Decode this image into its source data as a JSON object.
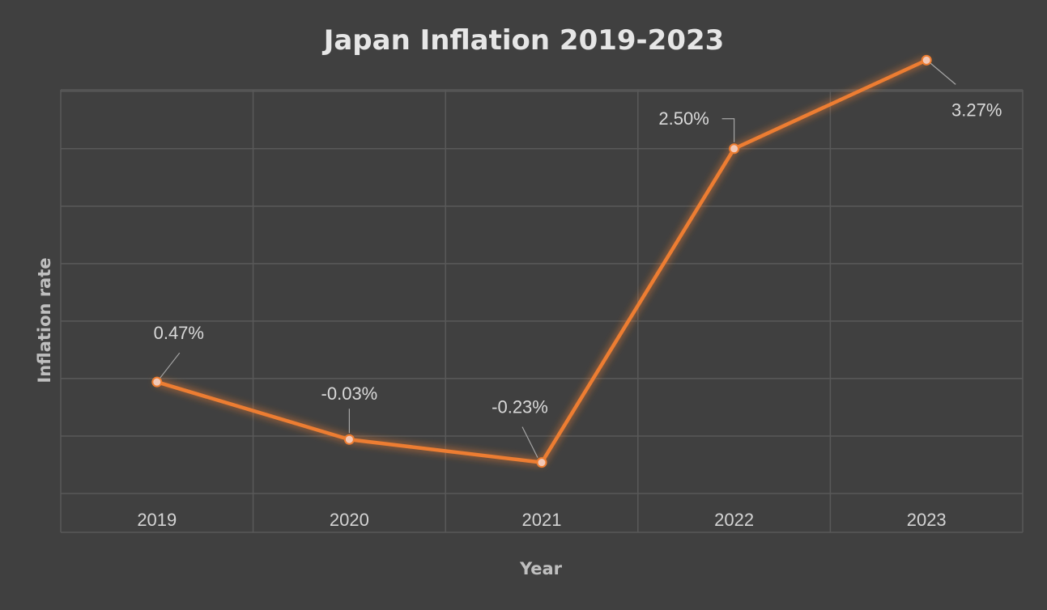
{
  "chart_data": {
    "type": "line",
    "title": "Japan Inflation 2019-2023",
    "xlabel": "Year",
    "ylabel": "Inflation rate",
    "categories": [
      "2019",
      "2020",
      "2021",
      "2022",
      "2023"
    ],
    "series": [
      {
        "name": "Inflation rate",
        "values": [
          0.47,
          -0.03,
          -0.23,
          2.5,
          3.27
        ],
        "labels": [
          "0.47%",
          "-0.03%",
          "-0.23%",
          "2.50%",
          "3.27%"
        ]
      }
    ],
    "ylim": [
      -0.5,
      3.5
    ],
    "y_major_unit": 0.5,
    "grid": true,
    "legend": "none",
    "colors": {
      "background": "#404040",
      "line": "#ed7d31",
      "grid": "#595959"
    }
  }
}
